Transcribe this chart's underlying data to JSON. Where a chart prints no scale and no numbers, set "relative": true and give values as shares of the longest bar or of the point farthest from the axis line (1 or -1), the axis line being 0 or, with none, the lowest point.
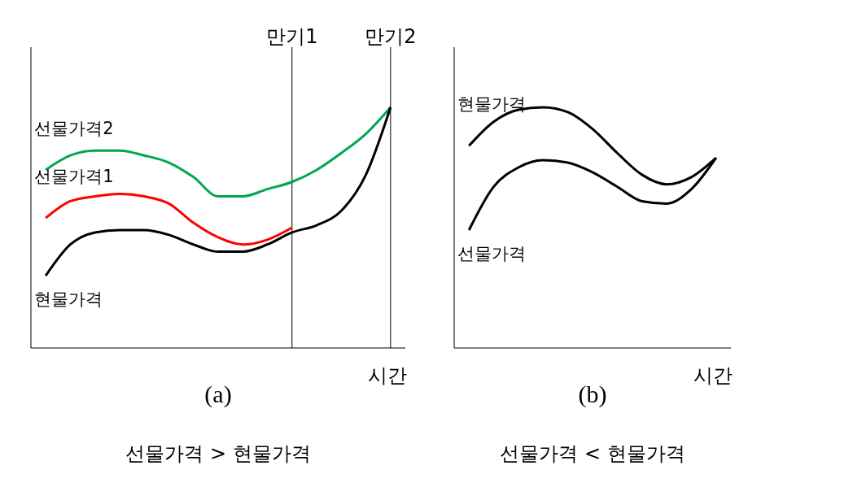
{
  "chart_data": [
    {
      "type": "line",
      "relative": true,
      "xlabel": "시간",
      "categories": [
        null,
        null,
        null,
        null,
        null,
        null,
        null,
        null,
        null,
        null,
        null,
        null,
        null,
        null,
        null
      ],
      "series": [
        {
          "name": "선물가격2",
          "color": "#00a651",
          "values": [
            0.74,
            0.8,
            0.82,
            0.82,
            0.8,
            0.77,
            0.71,
            0.63,
            0.63,
            0.66,
            0.69,
            0.74,
            0.81,
            0.89,
            1
          ]
        },
        {
          "name": "선물가격1",
          "color": "#ff0000",
          "values": [
            0.54,
            0.61,
            0.63,
            0.64,
            0.63,
            0.6,
            0.52,
            0.46,
            0.43,
            0.45,
            0.5,
            null,
            null,
            null,
            null
          ]
        },
        {
          "name": "현물가격",
          "color": "#000000",
          "values": [
            0.3,
            0.43,
            0.48,
            0.49,
            0.49,
            0.47,
            0.43,
            0.4,
            0.4,
            0.43,
            0.48,
            0.51,
            0.57,
            0.72,
            1
          ]
        }
      ],
      "grid": false,
      "legend": false,
      "marker": "none",
      "line_style": "solid",
      "annotations": [
        "(a)",
        "선물가격 > 현물가격",
        "만기1",
        "만기2"
      ]
    },
    {
      "type": "line",
      "relative": true,
      "xlabel": "시간",
      "categories": [
        null,
        null,
        null,
        null,
        null,
        null,
        null,
        null,
        null,
        null,
        null
      ],
      "series": [
        {
          "name": "현물가격",
          "color": "#000000",
          "values": [
            0.84,
            0.94,
            0.99,
            1,
            0.98,
            0.91,
            0.81,
            0.72,
            0.68,
            0.71,
            0.79
          ]
        },
        {
          "name": "선물가격",
          "color": "#000000",
          "values": [
            0.49,
            0.67,
            0.75,
            0.78,
            0.77,
            0.73,
            0.67,
            0.61,
            0.6,
            0.66,
            0.79
          ]
        }
      ],
      "grid": false,
      "legend": false,
      "marker": "none",
      "line_style": "solid",
      "annotations": [
        "(b)",
        "선물가격 < 현물가격"
      ]
    }
  ]
}
